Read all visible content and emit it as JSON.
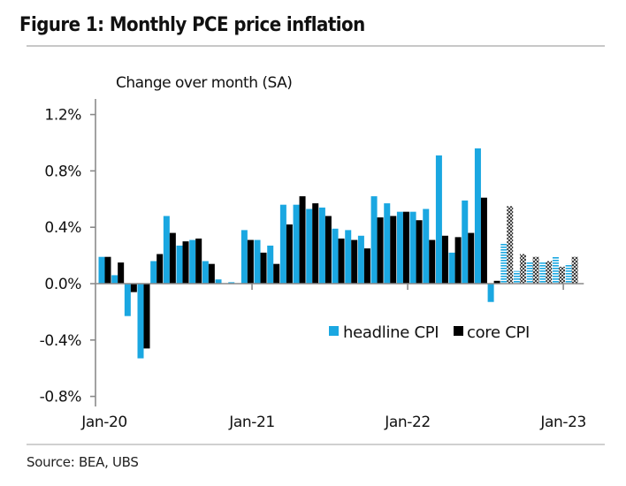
{
  "figure": {
    "title": "Figure 1: Monthly PCE price inflation",
    "source": "Source: BEA, UBS"
  },
  "colors": {
    "headline": "#1aa7e1",
    "core": "#000000",
    "axis": "#8a8a8a"
  },
  "chart_data": {
    "type": "bar",
    "title": "Figure 1: Monthly PCE price inflation",
    "subtitle": "Change over month (SA)",
    "xlabel": "",
    "ylabel": "Change over month (SA)",
    "ylim": [
      -0.8,
      1.2
    ],
    "yticks": [
      1.2,
      0.8,
      0.4,
      0.0,
      -0.4,
      -0.8
    ],
    "ytick_labels": [
      "1.2%",
      "0.8%",
      "0.4%",
      "0.0%",
      "-0.4%",
      "-0.8%"
    ],
    "xtick_labels": [
      "Jan-20",
      "Jan-21",
      "Jan-22",
      "Jan-23"
    ],
    "xtick_months": [
      "Jan-20",
      "Jan-21",
      "Jan-22",
      "Jan-23"
    ],
    "grid": false,
    "legend_position": "center-right",
    "categories": [
      "Jan-20",
      "Feb-20",
      "Mar-20",
      "Apr-20",
      "May-20",
      "Jun-20",
      "Jul-20",
      "Aug-20",
      "Sep-20",
      "Oct-20",
      "Nov-20",
      "Dec-20",
      "Jan-21",
      "Feb-21",
      "Mar-21",
      "Apr-21",
      "May-21",
      "Jun-21",
      "Jul-21",
      "Aug-21",
      "Sep-21",
      "Oct-21",
      "Nov-21",
      "Dec-21",
      "Jan-22",
      "Feb-22",
      "Mar-22",
      "Apr-22",
      "May-22",
      "Jun-22",
      "Jul-22",
      "Aug-22",
      "Sep-22",
      "Oct-22",
      "Nov-22",
      "Dec-22",
      "Jan-23"
    ],
    "forecast_start": "Aug-22",
    "series": [
      {
        "name": "headline CPI",
        "values": [
          0.19,
          0.06,
          -0.23,
          -0.53,
          0.16,
          0.48,
          0.27,
          0.31,
          0.16,
          0.03,
          0.01,
          0.38,
          0.31,
          0.27,
          0.56,
          0.56,
          0.53,
          0.54,
          0.39,
          0.38,
          0.34,
          0.62,
          0.57,
          0.51,
          0.51,
          0.53,
          0.91,
          0.22,
          0.59,
          0.96,
          -0.13,
          0.29,
          0.09,
          0.16,
          0.15,
          0.19,
          0.14
        ]
      },
      {
        "name": "core CPI",
        "values": [
          0.19,
          0.15,
          -0.06,
          -0.46,
          0.21,
          0.36,
          0.3,
          0.32,
          0.14,
          0.0,
          0.0,
          0.31,
          0.22,
          0.14,
          0.42,
          0.62,
          0.57,
          0.48,
          0.32,
          0.31,
          0.25,
          0.47,
          0.48,
          0.51,
          0.45,
          0.31,
          0.34,
          0.33,
          0.36,
          0.61,
          0.02,
          0.55,
          0.21,
          0.19,
          0.16,
          0.12,
          0.19
        ]
      }
    ]
  },
  "legend": {
    "items": [
      {
        "label": "headline CPI",
        "series": "headline"
      },
      {
        "label": "core CPI",
        "series": "core"
      }
    ]
  }
}
